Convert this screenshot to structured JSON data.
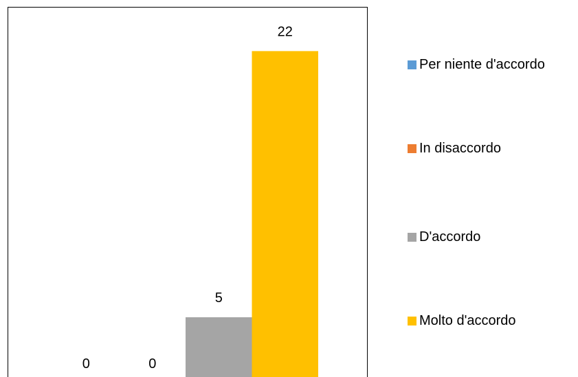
{
  "chart_data": {
    "type": "bar",
    "categories": [
      ""
    ],
    "series": [
      {
        "name": "Per niente d'accordo",
        "values": [
          0
        ],
        "color": "#5B9BD5"
      },
      {
        "name": "In disaccordo",
        "values": [
          0
        ],
        "color": "#ED7D31"
      },
      {
        "name": "D'accordo",
        "values": [
          5
        ],
        "color": "#A5A5A5"
      },
      {
        "name": "Molto d'accordo",
        "values": [
          22
        ],
        "color": "#FFC000"
      }
    ],
    "data_labels": [
      "0",
      "0",
      "5",
      "22"
    ],
    "ylim": [
      0,
      25
    ],
    "grid": false,
    "legend": "right"
  }
}
